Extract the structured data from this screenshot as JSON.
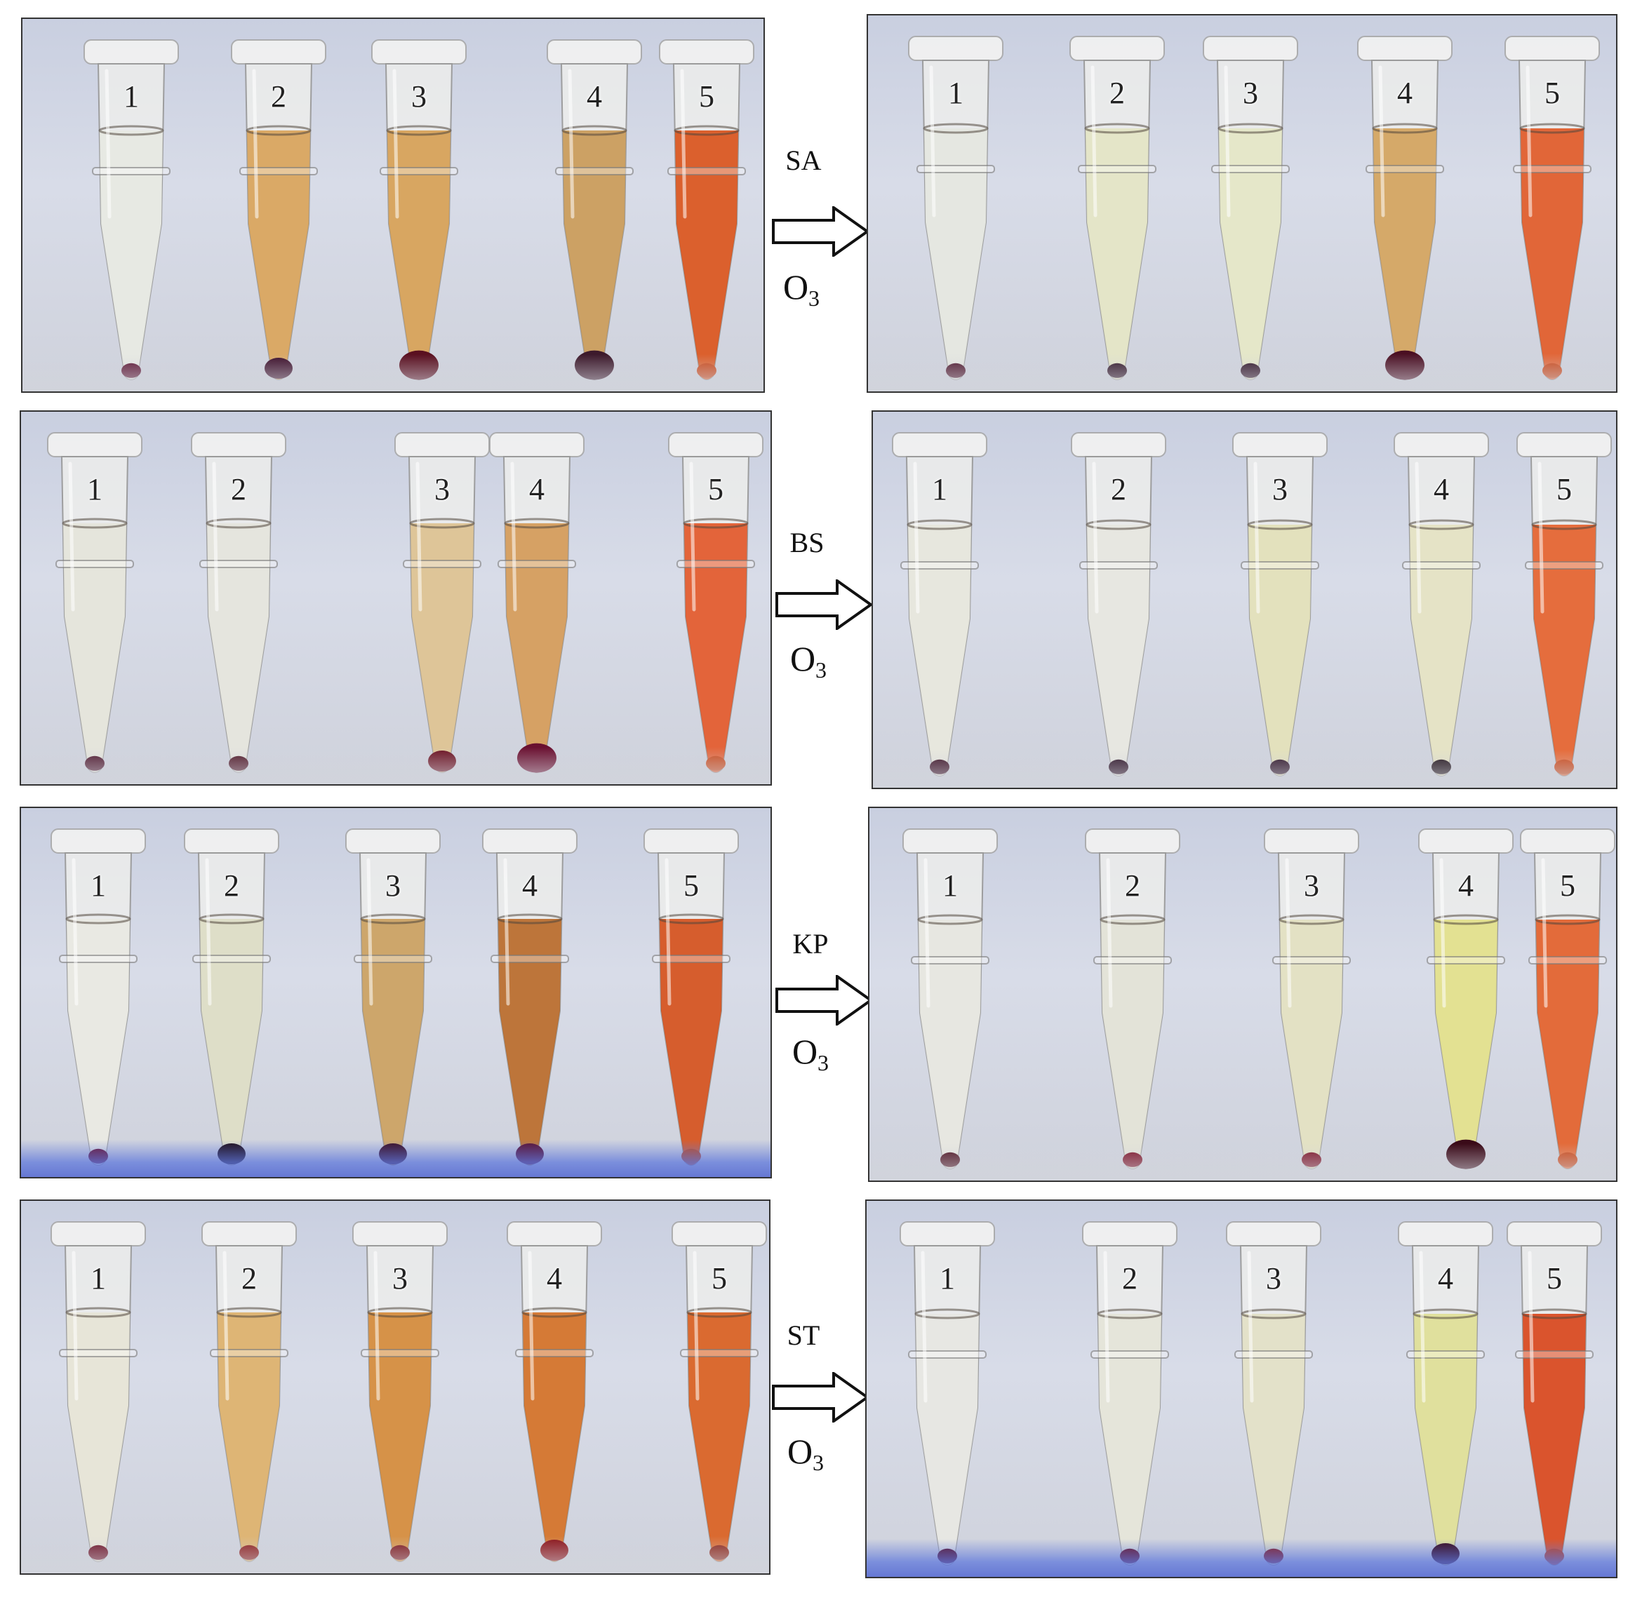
{
  "rows": [
    {
      "organism": "SA",
      "treatment": "O3",
      "before": {
        "tray": "white",
        "tubes": [
          {
            "label": "1",
            "liquid": "#e6e8e2",
            "pellet": "#5a1330",
            "pellet_size": "small"
          },
          {
            "label": "2",
            "liquid": "#d8a35a",
            "pellet": "#3c0f2a",
            "pellet_size": "medium"
          },
          {
            "label": "3",
            "liquid": "#d6a055",
            "pellet": "#5a1020",
            "pellet_size": "large"
          },
          {
            "label": "4",
            "liquid": "#c99a58",
            "pellet": "#3d1a2c",
            "pellet_size": "large"
          },
          {
            "label": "5",
            "liquid": "#d9541c",
            "pellet": "#c9481a",
            "pellet_size": "small"
          }
        ]
      },
      "after": {
        "tray": "white",
        "tubes": [
          {
            "label": "1",
            "liquid": "#e4e6df",
            "pellet": "#4a1228",
            "pellet_size": "small"
          },
          {
            "label": "2",
            "liquid": "#e3e4c4",
            "pellet": "#2b0f22",
            "pellet_size": "small"
          },
          {
            "label": "3",
            "liquid": "#e4e6c6",
            "pellet": "#2b0f22",
            "pellet_size": "small"
          },
          {
            "label": "4",
            "liquid": "#d3a35d",
            "pellet": "#4a0f22",
            "pellet_size": "large"
          },
          {
            "label": "5",
            "liquid": "#df5a28",
            "pellet": "#c9481a",
            "pellet_size": "small"
          }
        ]
      }
    },
    {
      "organism": "BS",
      "treatment": "O3",
      "before": {
        "tray": "white",
        "tubes": [
          {
            "label": "1",
            "liquid": "#e4e4da",
            "pellet": "#4a1228",
            "pellet_size": "small"
          },
          {
            "label": "2",
            "liquid": "#e4e4dc",
            "pellet": "#4a1020",
            "pellet_size": "small"
          },
          {
            "label": "3",
            "liquid": "#dcc190",
            "pellet": "#6a1020",
            "pellet_size": "medium"
          },
          {
            "label": "4",
            "liquid": "#d49a58",
            "pellet": "#6a1030",
            "pellet_size": "large"
          },
          {
            "label": "5",
            "liquid": "#e2582a",
            "pellet": "#c9481a",
            "pellet_size": "small"
          }
        ]
      },
      "after": {
        "tray": "white",
        "tubes": [
          {
            "label": "1",
            "liquid": "#e6e6dc",
            "pellet": "#3a1024",
            "pellet_size": "small"
          },
          {
            "label": "2",
            "liquid": "#e6e6e0",
            "pellet": "#2a1024",
            "pellet_size": "small"
          },
          {
            "label": "3",
            "liquid": "#e2e0b8",
            "pellet": "#2a1024",
            "pellet_size": "small"
          },
          {
            "label": "4",
            "liquid": "#e4e2c2",
            "pellet": "#1e1018",
            "pellet_size": "small"
          },
          {
            "label": "5",
            "liquid": "#e4622e",
            "pellet": "#c9481a",
            "pellet_size": "small"
          }
        ]
      }
    },
    {
      "organism": "KP",
      "treatment": "O3",
      "before": {
        "tray": "blue",
        "tubes": [
          {
            "label": "1",
            "liquid": "#e8e8e2",
            "pellet": "#6a0f2a",
            "pellet_size": "small"
          },
          {
            "label": "2",
            "liquid": "#dcdcc4",
            "pellet": "#1e0c14",
            "pellet_size": "medium"
          },
          {
            "label": "3",
            "liquid": "#caa060",
            "pellet": "#3a0c1e",
            "pellet_size": "medium"
          },
          {
            "label": "4",
            "liquid": "#b86a2a",
            "pellet": "#5a1030",
            "pellet_size": "medium"
          },
          {
            "label": "5",
            "liquid": "#d4501c",
            "pellet": "#c24818",
            "pellet_size": "small"
          }
        ]
      },
      "after": {
        "tray": "white",
        "tubes": [
          {
            "label": "1",
            "liquid": "#e6e6e0",
            "pellet": "#4a0f1e",
            "pellet_size": "small"
          },
          {
            "label": "2",
            "liquid": "#e2e2d6",
            "pellet": "#7a0f24",
            "pellet_size": "small"
          },
          {
            "label": "3",
            "liquid": "#e2e0c0",
            "pellet": "#7a1024",
            "pellet_size": "small"
          },
          {
            "label": "4",
            "liquid": "#e2e08a",
            "pellet": "#3a0a18",
            "pellet_size": "large"
          },
          {
            "label": "5",
            "liquid": "#e2602a",
            "pellet": "#c9481a",
            "pellet_size": "small"
          }
        ]
      }
    },
    {
      "organism": "ST",
      "treatment": "O3",
      "before": {
        "tray": "white",
        "tubes": [
          {
            "label": "1",
            "liquid": "#e6e4d6",
            "pellet": "#6a0f24",
            "pellet_size": "small"
          },
          {
            "label": "2",
            "liquid": "#dcb06a",
            "pellet": "#8a1a1a",
            "pellet_size": "small"
          },
          {
            "label": "3",
            "liquid": "#d48a3a",
            "pellet": "#7a1218",
            "pellet_size": "small"
          },
          {
            "label": "4",
            "liquid": "#d27026",
            "pellet": "#8a1218",
            "pellet_size": "medium"
          },
          {
            "label": "5",
            "liquid": "#d85e20",
            "pellet": "#8a2418",
            "pellet_size": "small"
          }
        ]
      },
      "after": {
        "tray": "blue",
        "tubes": [
          {
            "label": "1",
            "liquid": "#e6e6e2",
            "pellet": "#5a0f24",
            "pellet_size": "small"
          },
          {
            "label": "2",
            "liquid": "#e4e4d8",
            "pellet": "#6a0f1e",
            "pellet_size": "small"
          },
          {
            "label": "3",
            "liquid": "#e2e0c6",
            "pellet": "#8a1a1a",
            "pellet_size": "small"
          },
          {
            "label": "4",
            "liquid": "#dede96",
            "pellet": "#3a0a1a",
            "pellet_size": "medium"
          },
          {
            "label": "5",
            "liquid": "#d8461c",
            "pellet": "#c2401a",
            "pellet_size": "small"
          }
        ]
      }
    }
  ]
}
